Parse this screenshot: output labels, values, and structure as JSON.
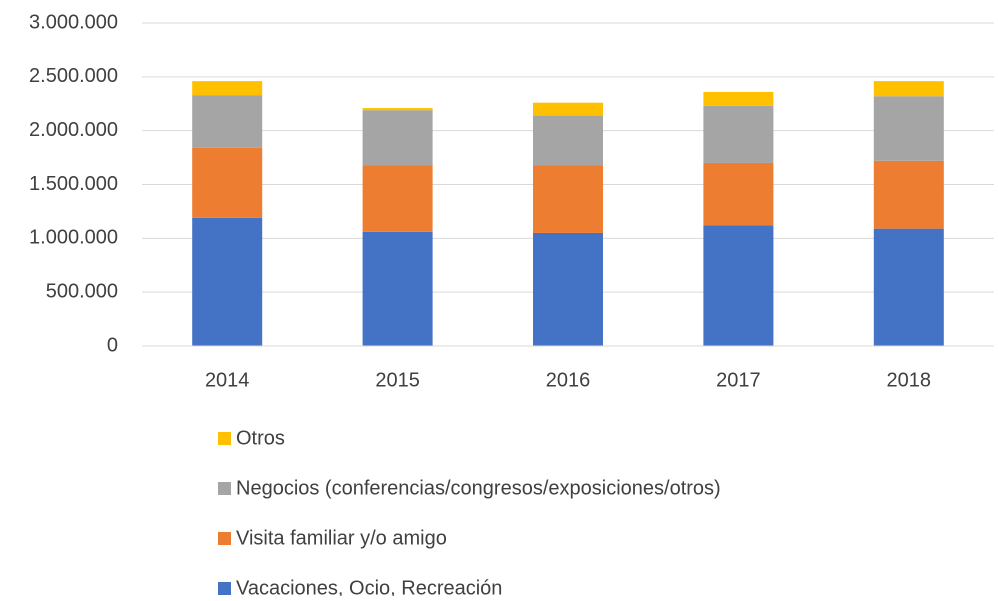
{
  "chart_data": {
    "type": "stacked_bar",
    "categories": [
      "2014",
      "2015",
      "2016",
      "2017",
      "2018"
    ],
    "series": [
      {
        "name": "Vacaciones, Ocio, Recreación",
        "color": "#4472c4",
        "values": [
          1190000,
          1060000,
          1050000,
          1120000,
          1090000
        ]
      },
      {
        "name": "Visita familiar y/o amigo",
        "color": "#ed7d31",
        "values": [
          650000,
          620000,
          630000,
          580000,
          630000
        ]
      },
      {
        "name": "Negocios (conferencias/congresos/exposiciones/otros)",
        "color": "#a5a5a5",
        "values": [
          490000,
          510000,
          460000,
          530000,
          600000
        ]
      },
      {
        "name": "Otros",
        "color": "#ffc000",
        "values": [
          130000,
          20000,
          120000,
          130000,
          140000
        ]
      }
    ],
    "ylim": [
      0,
      3000000
    ],
    "yticks": [
      0,
      {
        "value": 500000,
        "label": "500.000"
      },
      {
        "value": 1000000,
        "label": "1.000.000"
      },
      {
        "value": 1500000,
        "label": "1.500.000"
      },
      {
        "value": 2000000,
        "label": "2.000.000"
      },
      {
        "value": 2500000,
        "label": "2.500.000"
      },
      {
        "value": 3000000,
        "label": "3.000.000"
      }
    ],
    "grid": true
  }
}
